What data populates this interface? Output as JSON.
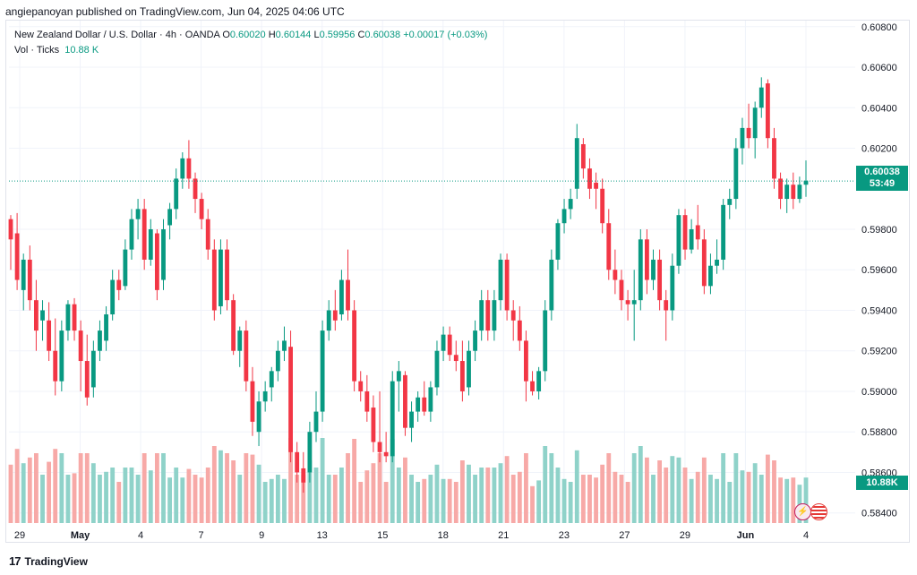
{
  "byline": "angiepanoyan published on TradingView.com, Jun 04, 2025 04:06 UTC",
  "legend": {
    "symbol": "New Zealand Dollar / U.S. Dollar · 4h · OANDA",
    "o_label": "O",
    "o_value": "0.60020",
    "h_label": "H",
    "h_value": "0.60144",
    "l_label": "L",
    "l_value": "0.59956",
    "c_label": "C",
    "c_value": "0.60038",
    "change": "+0.00017 (+0.03%)",
    "vol_label": "Vol · Ticks",
    "vol_value": "10.88 K"
  },
  "price_tag": {
    "price": "0.60038",
    "countdown": "53:49"
  },
  "vol_tag": "10.88K",
  "footer": {
    "brand": "TradingView",
    "logo": "tradingview-logo"
  },
  "colors": {
    "up": "#089981",
    "down": "#f23645",
    "vol_up": "#8fd2c9",
    "vol_down": "#f7a9a7",
    "grid": "#f0f3fa",
    "text": "#131722"
  },
  "chart_data": {
    "type": "candlestick",
    "y_axis": {
      "ticks": [
        "0.60600",
        "0.60400",
        "0.60200",
        "0.59800",
        "0.59600",
        "0.59400",
        "0.59200",
        "0.59000",
        "0.58800",
        "0.58600",
        "0.58400"
      ],
      "top_partial_tick": "0.60800",
      "range": [
        0.5835,
        0.6083
      ]
    },
    "x_axis": {
      "labels": [
        "29",
        "May",
        "4",
        "7",
        "9",
        "13",
        "15",
        "18",
        "21",
        "23",
        "27",
        "29",
        "Jun",
        "4"
      ]
    },
    "last_price": 0.60038,
    "grid": true,
    "candles": [
      {
        "o": 0.5985,
        "h": 0.5987,
        "l": 0.596,
        "c": 0.5975
      },
      {
        "o": 0.5978,
        "h": 0.5988,
        "l": 0.595,
        "c": 0.5955
      },
      {
        "o": 0.595,
        "h": 0.5968,
        "l": 0.594,
        "c": 0.5965
      },
      {
        "o": 0.5965,
        "h": 0.5972,
        "l": 0.594,
        "c": 0.5945
      },
      {
        "o": 0.5945,
        "h": 0.5955,
        "l": 0.592,
        "c": 0.593
      },
      {
        "o": 0.5935,
        "h": 0.5945,
        "l": 0.5925,
        "c": 0.594
      },
      {
        "o": 0.5935,
        "h": 0.5944,
        "l": 0.5915,
        "c": 0.592
      },
      {
        "o": 0.592,
        "h": 0.5936,
        "l": 0.5898,
        "c": 0.5905
      },
      {
        "o": 0.5905,
        "h": 0.5935,
        "l": 0.59,
        "c": 0.593
      },
      {
        "o": 0.593,
        "h": 0.5945,
        "l": 0.5925,
        "c": 0.5943
      },
      {
        "o": 0.5943,
        "h": 0.5946,
        "l": 0.5925,
        "c": 0.593
      },
      {
        "o": 0.593,
        "h": 0.5935,
        "l": 0.59,
        "c": 0.5915
      },
      {
        "o": 0.5915,
        "h": 0.5928,
        "l": 0.5893,
        "c": 0.5897
      },
      {
        "o": 0.5902,
        "h": 0.5925,
        "l": 0.5897,
        "c": 0.592
      },
      {
        "o": 0.592,
        "h": 0.5935,
        "l": 0.5915,
        "c": 0.593
      },
      {
        "o": 0.5925,
        "h": 0.5942,
        "l": 0.592,
        "c": 0.5938
      },
      {
        "o": 0.5938,
        "h": 0.596,
        "l": 0.5935,
        "c": 0.5955
      },
      {
        "o": 0.5955,
        "h": 0.596,
        "l": 0.5945,
        "c": 0.595
      },
      {
        "o": 0.5952,
        "h": 0.5975,
        "l": 0.595,
        "c": 0.597
      },
      {
        "o": 0.597,
        "h": 0.599,
        "l": 0.5965,
        "c": 0.5985
      },
      {
        "o": 0.5985,
        "h": 0.5995,
        "l": 0.5975,
        "c": 0.599
      },
      {
        "o": 0.599,
        "h": 0.5995,
        "l": 0.596,
        "c": 0.5965
      },
      {
        "o": 0.5965,
        "h": 0.5985,
        "l": 0.5962,
        "c": 0.598
      },
      {
        "o": 0.5978,
        "h": 0.598,
        "l": 0.5945,
        "c": 0.595
      },
      {
        "o": 0.5955,
        "h": 0.5985,
        "l": 0.595,
        "c": 0.598
      },
      {
        "o": 0.5982,
        "h": 0.5993,
        "l": 0.5975,
        "c": 0.599
      },
      {
        "o": 0.599,
        "h": 0.601,
        "l": 0.5985,
        "c": 0.6005
      },
      {
        "o": 0.6005,
        "h": 0.6018,
        "l": 0.6,
        "c": 0.6015
      },
      {
        "o": 0.6015,
        "h": 0.6024,
        "l": 0.6,
        "c": 0.6005
      },
      {
        "o": 0.6005,
        "h": 0.6008,
        "l": 0.5988,
        "c": 0.5995
      },
      {
        "o": 0.5995,
        "h": 0.5998,
        "l": 0.598,
        "c": 0.5985
      },
      {
        "o": 0.5985,
        "h": 0.599,
        "l": 0.5965,
        "c": 0.597
      },
      {
        "o": 0.597,
        "h": 0.5975,
        "l": 0.5935,
        "c": 0.594
      },
      {
        "o": 0.5942,
        "h": 0.5975,
        "l": 0.5938,
        "c": 0.597
      },
      {
        "o": 0.597,
        "h": 0.5975,
        "l": 0.594,
        "c": 0.5945
      },
      {
        "o": 0.5945,
        "h": 0.5948,
        "l": 0.5918,
        "c": 0.592
      },
      {
        "o": 0.592,
        "h": 0.5932,
        "l": 0.5912,
        "c": 0.593
      },
      {
        "o": 0.593,
        "h": 0.5935,
        "l": 0.59,
        "c": 0.5905
      },
      {
        "o": 0.5905,
        "h": 0.5912,
        "l": 0.5878,
        "c": 0.5885
      },
      {
        "o": 0.588,
        "h": 0.59,
        "l": 0.5873,
        "c": 0.5895
      },
      {
        "o": 0.5895,
        "h": 0.5905,
        "l": 0.589,
        "c": 0.59
      },
      {
        "o": 0.5902,
        "h": 0.5912,
        "l": 0.5895,
        "c": 0.591
      },
      {
        "o": 0.591,
        "h": 0.5925,
        "l": 0.5905,
        "c": 0.592
      },
      {
        "o": 0.592,
        "h": 0.5932,
        "l": 0.5915,
        "c": 0.5925
      },
      {
        "o": 0.5922,
        "h": 0.593,
        "l": 0.5865,
        "c": 0.587
      },
      {
        "o": 0.587,
        "h": 0.5875,
        "l": 0.5855,
        "c": 0.586
      },
      {
        "o": 0.5862,
        "h": 0.587,
        "l": 0.585,
        "c": 0.5855
      },
      {
        "o": 0.586,
        "h": 0.5885,
        "l": 0.5855,
        "c": 0.588
      },
      {
        "o": 0.588,
        "h": 0.59,
        "l": 0.5875,
        "c": 0.589
      },
      {
        "o": 0.589,
        "h": 0.5935,
        "l": 0.5885,
        "c": 0.593
      },
      {
        "o": 0.593,
        "h": 0.5945,
        "l": 0.5925,
        "c": 0.594
      },
      {
        "o": 0.594,
        "h": 0.595,
        "l": 0.593,
        "c": 0.5935
      },
      {
        "o": 0.5938,
        "h": 0.596,
        "l": 0.5935,
        "c": 0.5955
      },
      {
        "o": 0.5955,
        "h": 0.597,
        "l": 0.5935,
        "c": 0.594
      },
      {
        "o": 0.594,
        "h": 0.5945,
        "l": 0.59,
        "c": 0.5905
      },
      {
        "o": 0.5905,
        "h": 0.591,
        "l": 0.5895,
        "c": 0.59
      },
      {
        "o": 0.59,
        "h": 0.5908,
        "l": 0.5885,
        "c": 0.589
      },
      {
        "o": 0.5892,
        "h": 0.5898,
        "l": 0.587,
        "c": 0.5875
      },
      {
        "o": 0.5875,
        "h": 0.59,
        "l": 0.5865,
        "c": 0.587
      },
      {
        "o": 0.587,
        "h": 0.588,
        "l": 0.5865,
        "c": 0.5868
      },
      {
        "o": 0.5868,
        "h": 0.591,
        "l": 0.5865,
        "c": 0.5905
      },
      {
        "o": 0.5905,
        "h": 0.5915,
        "l": 0.589,
        "c": 0.591
      },
      {
        "o": 0.5908,
        "h": 0.591,
        "l": 0.5878,
        "c": 0.5882
      },
      {
        "o": 0.5882,
        "h": 0.5895,
        "l": 0.5875,
        "c": 0.589
      },
      {
        "o": 0.589,
        "h": 0.59,
        "l": 0.5885,
        "c": 0.5897
      },
      {
        "o": 0.5897,
        "h": 0.5905,
        "l": 0.5888,
        "c": 0.589
      },
      {
        "o": 0.589,
        "h": 0.5905,
        "l": 0.5885,
        "c": 0.5902
      },
      {
        "o": 0.5902,
        "h": 0.5925,
        "l": 0.5898,
        "c": 0.592
      },
      {
        "o": 0.592,
        "h": 0.5932,
        "l": 0.5915,
        "c": 0.5928
      },
      {
        "o": 0.5928,
        "h": 0.5932,
        "l": 0.5915,
        "c": 0.5918
      },
      {
        "o": 0.5918,
        "h": 0.5925,
        "l": 0.591,
        "c": 0.5915
      },
      {
        "o": 0.5915,
        "h": 0.5925,
        "l": 0.5895,
        "c": 0.59
      },
      {
        "o": 0.5902,
        "h": 0.5925,
        "l": 0.5898,
        "c": 0.592
      },
      {
        "o": 0.592,
        "h": 0.5935,
        "l": 0.5915,
        "c": 0.593
      },
      {
        "o": 0.593,
        "h": 0.595,
        "l": 0.5925,
        "c": 0.5945
      },
      {
        "o": 0.5945,
        "h": 0.595,
        "l": 0.5925,
        "c": 0.593
      },
      {
        "o": 0.593,
        "h": 0.595,
        "l": 0.5925,
        "c": 0.5945
      },
      {
        "o": 0.5945,
        "h": 0.5968,
        "l": 0.594,
        "c": 0.5965
      },
      {
        "o": 0.5965,
        "h": 0.5968,
        "l": 0.5935,
        "c": 0.594
      },
      {
        "o": 0.594,
        "h": 0.5945,
        "l": 0.5925,
        "c": 0.5935
      },
      {
        "o": 0.5935,
        "h": 0.5942,
        "l": 0.592,
        "c": 0.5925
      },
      {
        "o": 0.5925,
        "h": 0.593,
        "l": 0.5895,
        "c": 0.5905
      },
      {
        "o": 0.5905,
        "h": 0.591,
        "l": 0.5898,
        "c": 0.59
      },
      {
        "o": 0.59,
        "h": 0.5912,
        "l": 0.5896,
        "c": 0.591
      },
      {
        "o": 0.591,
        "h": 0.5945,
        "l": 0.5905,
        "c": 0.594
      },
      {
        "o": 0.594,
        "h": 0.597,
        "l": 0.5935,
        "c": 0.5965
      },
      {
        "o": 0.5965,
        "h": 0.5985,
        "l": 0.596,
        "c": 0.5983
      },
      {
        "o": 0.5983,
        "h": 0.5995,
        "l": 0.5978,
        "c": 0.599
      },
      {
        "o": 0.599,
        "h": 0.6,
        "l": 0.5985,
        "c": 0.5995
      },
      {
        "o": 0.6,
        "h": 0.6032,
        "l": 0.5995,
        "c": 0.6025
      },
      {
        "o": 0.6022,
        "h": 0.6025,
        "l": 0.6005,
        "c": 0.601
      },
      {
        "o": 0.601,
        "h": 0.6015,
        "l": 0.5995,
        "c": 0.6
      },
      {
        "o": 0.6003,
        "h": 0.6008,
        "l": 0.599,
        "c": 0.6
      },
      {
        "o": 0.6,
        "h": 0.6005,
        "l": 0.5978,
        "c": 0.5983
      },
      {
        "o": 0.5983,
        "h": 0.599,
        "l": 0.5955,
        "c": 0.596
      },
      {
        "o": 0.596,
        "h": 0.597,
        "l": 0.5948,
        "c": 0.5955
      },
      {
        "o": 0.5955,
        "h": 0.596,
        "l": 0.594,
        "c": 0.5945
      },
      {
        "o": 0.5945,
        "h": 0.595,
        "l": 0.5935,
        "c": 0.5943
      },
      {
        "o": 0.5943,
        "h": 0.596,
        "l": 0.5925,
        "c": 0.5945
      },
      {
        "o": 0.5945,
        "h": 0.598,
        "l": 0.594,
        "c": 0.5975
      },
      {
        "o": 0.5975,
        "h": 0.598,
        "l": 0.5948,
        "c": 0.5955
      },
      {
        "o": 0.5955,
        "h": 0.597,
        "l": 0.595,
        "c": 0.5965
      },
      {
        "o": 0.5965,
        "h": 0.597,
        "l": 0.594,
        "c": 0.5945
      },
      {
        "o": 0.5945,
        "h": 0.595,
        "l": 0.5925,
        "c": 0.594
      },
      {
        "o": 0.594,
        "h": 0.5968,
        "l": 0.5935,
        "c": 0.5962
      },
      {
        "o": 0.5962,
        "h": 0.599,
        "l": 0.5958,
        "c": 0.5987
      },
      {
        "o": 0.5987,
        "h": 0.599,
        "l": 0.5965,
        "c": 0.597
      },
      {
        "o": 0.597,
        "h": 0.5985,
        "l": 0.5968,
        "c": 0.598
      },
      {
        "o": 0.5982,
        "h": 0.5992,
        "l": 0.597,
        "c": 0.5975
      },
      {
        "o": 0.5975,
        "h": 0.598,
        "l": 0.5948,
        "c": 0.5952
      },
      {
        "o": 0.5952,
        "h": 0.5968,
        "l": 0.5948,
        "c": 0.5962
      },
      {
        "o": 0.5962,
        "h": 0.5975,
        "l": 0.5958,
        "c": 0.5965
      },
      {
        "o": 0.5965,
        "h": 0.5995,
        "l": 0.596,
        "c": 0.5992
      },
      {
        "o": 0.5992,
        "h": 0.6,
        "l": 0.5985,
        "c": 0.5995
      },
      {
        "o": 0.5995,
        "h": 0.6025,
        "l": 0.599,
        "c": 0.602
      },
      {
        "o": 0.602,
        "h": 0.6035,
        "l": 0.6012,
        "c": 0.603
      },
      {
        "o": 0.603,
        "h": 0.6042,
        "l": 0.602,
        "c": 0.6025
      },
      {
        "o": 0.6025,
        "h": 0.6043,
        "l": 0.6015,
        "c": 0.604
      },
      {
        "o": 0.604,
        "h": 0.6055,
        "l": 0.6035,
        "c": 0.605
      },
      {
        "o": 0.6052,
        "h": 0.6054,
        "l": 0.602,
        "c": 0.6025
      },
      {
        "o": 0.6025,
        "h": 0.603,
        "l": 0.6,
        "c": 0.6005
      },
      {
        "o": 0.6005,
        "h": 0.6008,
        "l": 0.599,
        "c": 0.5995
      },
      {
        "o": 0.5995,
        "h": 0.6005,
        "l": 0.5988,
        "c": 0.6002
      },
      {
        "o": 0.6002,
        "h": 0.6008,
        "l": 0.599,
        "c": 0.5995
      },
      {
        "o": 0.5995,
        "h": 0.6006,
        "l": 0.5993,
        "c": 0.6002
      },
      {
        "o": 0.6002,
        "h": 0.6014,
        "l": 0.5996,
        "c": 0.6004
      }
    ]
  }
}
